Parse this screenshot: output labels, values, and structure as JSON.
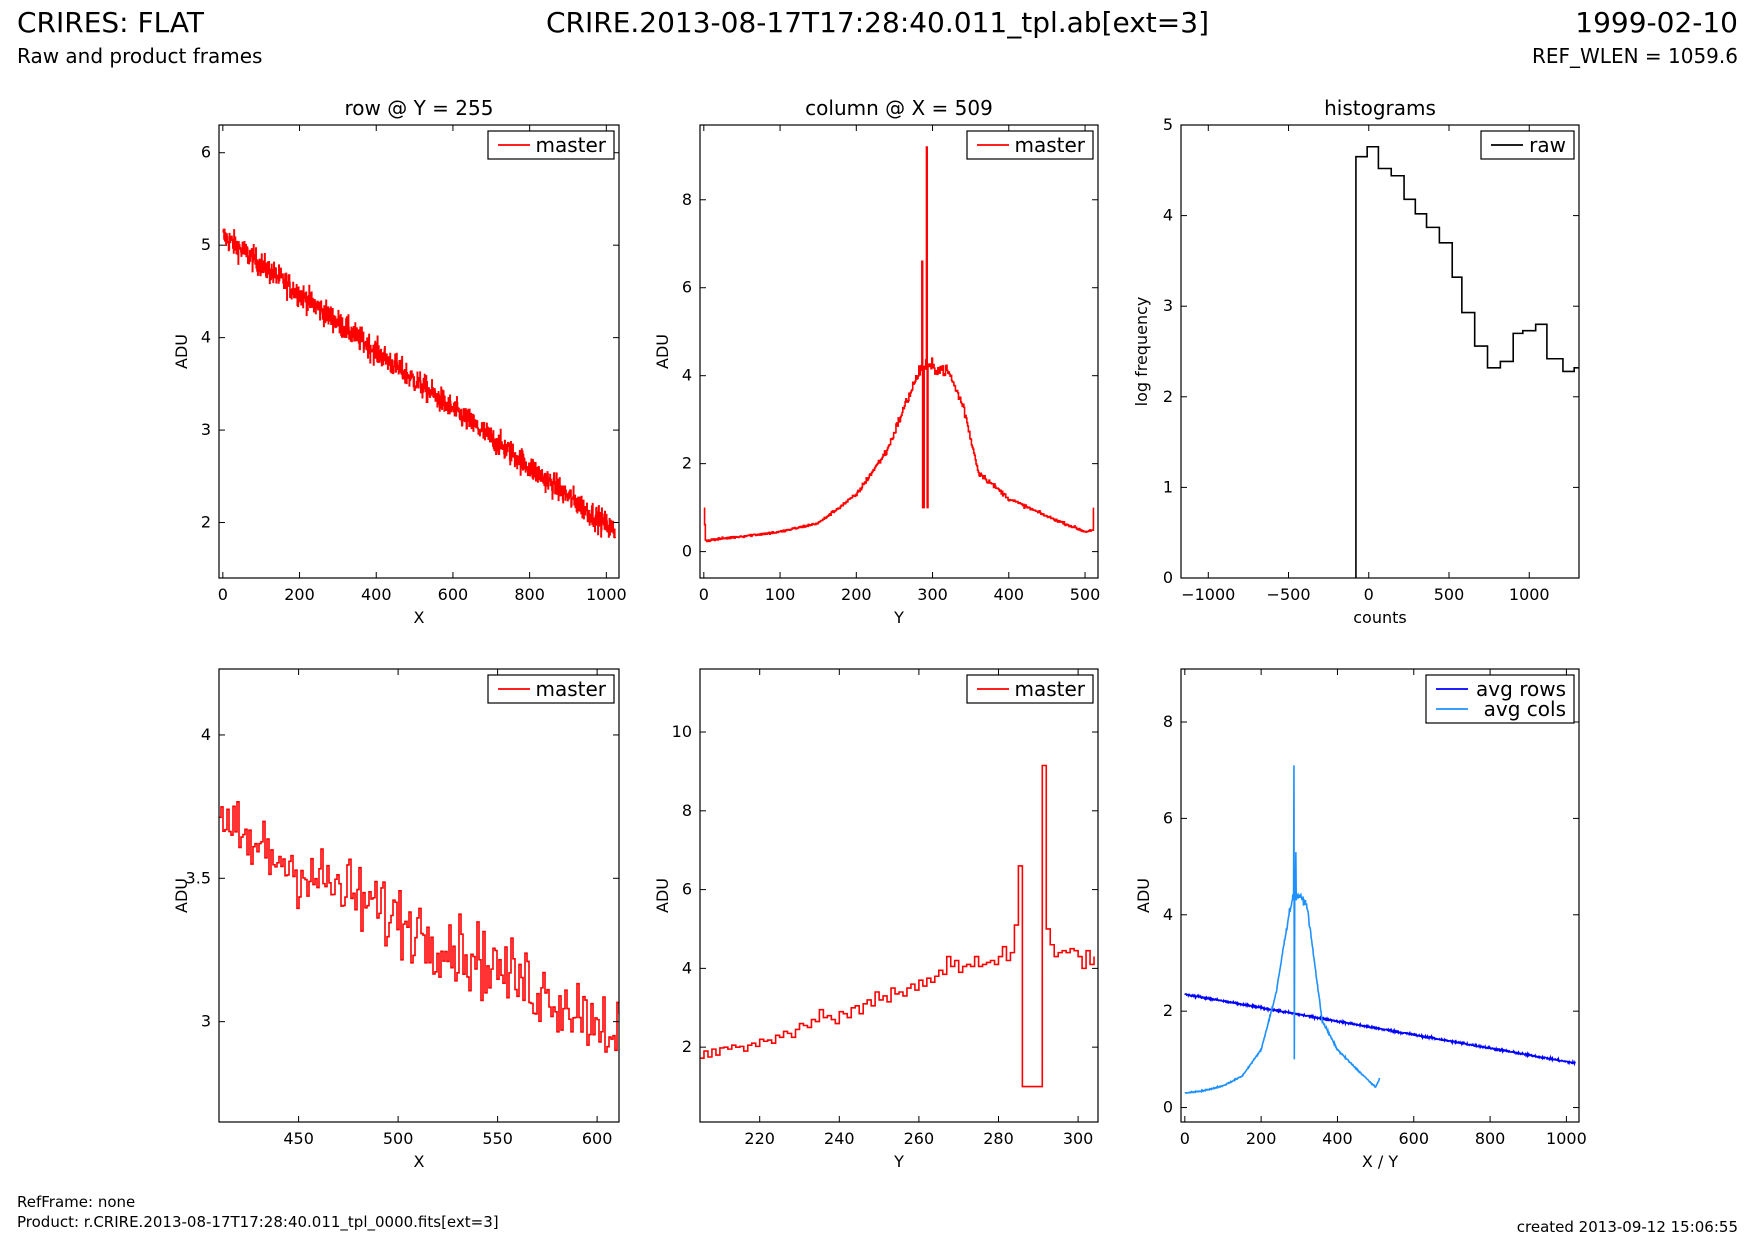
{
  "header": {
    "title_left": "CRIRES: FLAT",
    "subtitle_left": "Raw and product frames",
    "title_center": "CRIRE.2013-08-17T17:28:40.011_tpl.ab[ext=3]",
    "title_right": "1999-02-10",
    "subtitle_right": "REF_WLEN = 1059.6"
  },
  "footer": {
    "refframe": "RefFrame: none",
    "product": "Product: r.CRIRE.2013-08-17T17:28:40.011_tpl_0000.fits[ext=3]",
    "created": "created 2013-09-12 15:06:55"
  },
  "colors": {
    "master": "#ff0000",
    "raw": "#000000",
    "avg_rows": "#0000ff",
    "avg_cols": "#1e90ff"
  },
  "chart_data": [
    {
      "type": "line",
      "title": "row @ Y = 255",
      "xlabel": "X",
      "ylabel": "ADU",
      "xlim": [
        -10,
        1033
      ],
      "ylim": [
        1.4,
        6.3
      ],
      "xticks": [
        0,
        200,
        400,
        600,
        800,
        1000
      ],
      "yticks": [
        2,
        3,
        4,
        5,
        6
      ],
      "legend": "top-right",
      "series": [
        {
          "name": "master",
          "color": "#ff0000",
          "step": true,
          "trend": {
            "x": [
              0,
              1023
            ],
            "y": [
              5.1,
              1.9
            ]
          },
          "noise": 0.13,
          "samples": 1024
        }
      ]
    },
    {
      "type": "line",
      "title": "column @ X = 509",
      "xlabel": "Y",
      "ylabel": "ADU",
      "xlim": [
        -5,
        517
      ],
      "ylim": [
        -0.6,
        9.7
      ],
      "xticks": [
        0,
        100,
        200,
        300,
        400,
        500
      ],
      "yticks": [
        0,
        2,
        4,
        6,
        8
      ],
      "legend": "top-right",
      "series": [
        {
          "name": "master",
          "color": "#ff0000",
          "step": true,
          "noise": 0.07,
          "profile": {
            "x": [
              0,
              2,
              50,
              100,
              150,
              200,
              240,
              270,
              285,
              300,
              320,
              340,
              360,
              400,
              450,
              500,
              510,
              511
            ],
            "y": [
              1.0,
              0.25,
              0.35,
              0.45,
              0.65,
              1.3,
              2.3,
              3.6,
              4.2,
              4.2,
              4.1,
              3.3,
              1.8,
              1.2,
              0.8,
              0.45,
              0.5,
              1.0
            ]
          },
          "spikes": {
            "x": [
              286,
              287,
              288,
              292,
              293
            ],
            "y": [
              6.6,
              1.0,
              1.0,
              9.2,
              1.0
            ]
          }
        }
      ]
    },
    {
      "type": "line",
      "title": "histograms",
      "xlabel": "counts",
      "ylabel": "log frequency",
      "xlim": [
        -1170,
        1310
      ],
      "ylim": [
        0,
        5
      ],
      "xticks": [
        -1000,
        -500,
        0,
        500,
        1000
      ],
      "yticks": [
        0,
        1,
        2,
        3,
        4,
        5
      ],
      "legend": "top-right",
      "series": [
        {
          "name": "raw",
          "color": "#000000",
          "step": true,
          "edges": [
            -80,
            -10,
            60,
            140,
            220,
            290,
            360,
            440,
            520,
            580,
            660,
            740,
            820,
            900,
            960,
            1040,
            1110,
            1210,
            1280,
            1310
          ],
          "values": [
            4.65,
            4.76,
            4.52,
            4.44,
            4.18,
            4.02,
            3.87,
            3.7,
            3.32,
            2.93,
            2.56,
            2.32,
            2.39,
            2.7,
            2.73,
            2.8,
            2.42,
            2.28,
            2.32
          ]
        }
      ]
    },
    {
      "type": "line",
      "xlabel": "X",
      "ylabel": "ADU",
      "xlim": [
        410,
        611
      ],
      "ylim": [
        2.65,
        4.23
      ],
      "xticks": [
        450,
        500,
        550,
        600
      ],
      "yticks": [
        3.0,
        3.5,
        4.0
      ],
      "legend": "top-right",
      "series": [
        {
          "name": "master",
          "color": "#ff0000",
          "step": true,
          "trend": {
            "x": [
              410,
              611
            ],
            "y": [
              3.67,
              2.97
            ]
          },
          "noise": 0.12,
          "samples": 201
        }
      ]
    },
    {
      "type": "line",
      "xlabel": "Y",
      "ylabel": "ADU",
      "xlim": [
        205,
        305
      ],
      "ylim": [
        0.1,
        11.6
      ],
      "xticks": [
        220,
        240,
        260,
        280,
        300
      ],
      "yticks": [
        2,
        4,
        6,
        8,
        10
      ],
      "legend": "top-right",
      "series": [
        {
          "name": "master",
          "color": "#ff0000",
          "step": true,
          "x": [
            205,
            206,
            207,
            208,
            209,
            210,
            211,
            212,
            213,
            214,
            215,
            216,
            217,
            218,
            219,
            220,
            221,
            222,
            223,
            224,
            225,
            226,
            227,
            228,
            229,
            230,
            231,
            232,
            233,
            234,
            235,
            236,
            237,
            238,
            239,
            240,
            241,
            242,
            243,
            244,
            245,
            246,
            247,
            248,
            249,
            250,
            251,
            252,
            253,
            254,
            255,
            256,
            257,
            258,
            259,
            260,
            261,
            262,
            263,
            264,
            265,
            266,
            267,
            268,
            269,
            270,
            271,
            272,
            273,
            274,
            275,
            276,
            277,
            278,
            279,
            280,
            281,
            282,
            283,
            284,
            285,
            286,
            287,
            288,
            289,
            290,
            291,
            292,
            293,
            294,
            295,
            296,
            297,
            298,
            299,
            300,
            301,
            302,
            303,
            304
          ],
          "y": [
            1.72,
            1.9,
            1.75,
            1.95,
            1.8,
            1.98,
            2.0,
            1.95,
            2.05,
            2.0,
            2.02,
            1.9,
            2.05,
            2.1,
            2.02,
            2.2,
            2.15,
            2.18,
            2.1,
            2.3,
            2.25,
            2.4,
            2.35,
            2.25,
            2.45,
            2.6,
            2.55,
            2.5,
            2.7,
            2.65,
            2.95,
            2.75,
            2.8,
            2.7,
            2.6,
            2.9,
            2.85,
            2.75,
            3.0,
            3.05,
            2.85,
            3.1,
            3.2,
            3.05,
            3.4,
            3.2,
            3.3,
            3.15,
            3.5,
            3.35,
            3.4,
            3.3,
            3.5,
            3.6,
            3.45,
            3.7,
            3.55,
            3.75,
            3.65,
            3.8,
            3.95,
            3.85,
            4.3,
            4.05,
            4.2,
            3.9,
            4.05,
            4.1,
            4.05,
            4.3,
            4.05,
            4.1,
            4.15,
            4.2,
            4.1,
            4.3,
            4.55,
            4.2,
            4.4,
            5.1,
            6.6,
            1.0,
            1.0,
            1.0,
            1.0,
            1.0,
            9.15,
            5.0,
            4.6,
            4.3,
            4.4,
            4.45,
            4.4,
            4.5,
            4.45,
            4.3,
            4.0,
            4.45,
            4.1,
            4.3
          ]
        }
      ]
    },
    {
      "type": "line",
      "xlabel": "X / Y",
      "ylabel": "ADU",
      "xlim": [
        -10,
        1033
      ],
      "ylim": [
        -0.3,
        9.1
      ],
      "xticks": [
        0,
        200,
        400,
        600,
        800,
        1000
      ],
      "yticks": [
        0,
        2,
        4,
        6,
        8
      ],
      "legend": "top-right",
      "series": [
        {
          "name": "avg rows",
          "color": "#0000ff",
          "step": false,
          "trend": {
            "x": [
              0,
              1023
            ],
            "y": [
              2.35,
              0.92
            ]
          },
          "noise": 0.02,
          "samples": 1024
        },
        {
          "name": "avg cols",
          "color": "#1e90ff",
          "step": false,
          "noise": 0.03,
          "profile": {
            "x": [
              0,
              50,
              100,
              150,
              200,
              240,
              260,
              275,
              285,
              300,
              320,
              340,
              360,
              400,
              450,
              500,
              510
            ],
            "y": [
              0.3,
              0.35,
              0.45,
              0.65,
              1.2,
              2.4,
              3.4,
              4.1,
              4.4,
              4.4,
              4.2,
              3.0,
              1.8,
              1.2,
              0.8,
              0.42,
              0.6
            ]
          },
          "spikes": {
            "x": [
              286,
              287,
              291,
              292
            ],
            "y": [
              7.1,
              1.0,
              5.3,
              4.3
            ]
          }
        }
      ]
    }
  ]
}
